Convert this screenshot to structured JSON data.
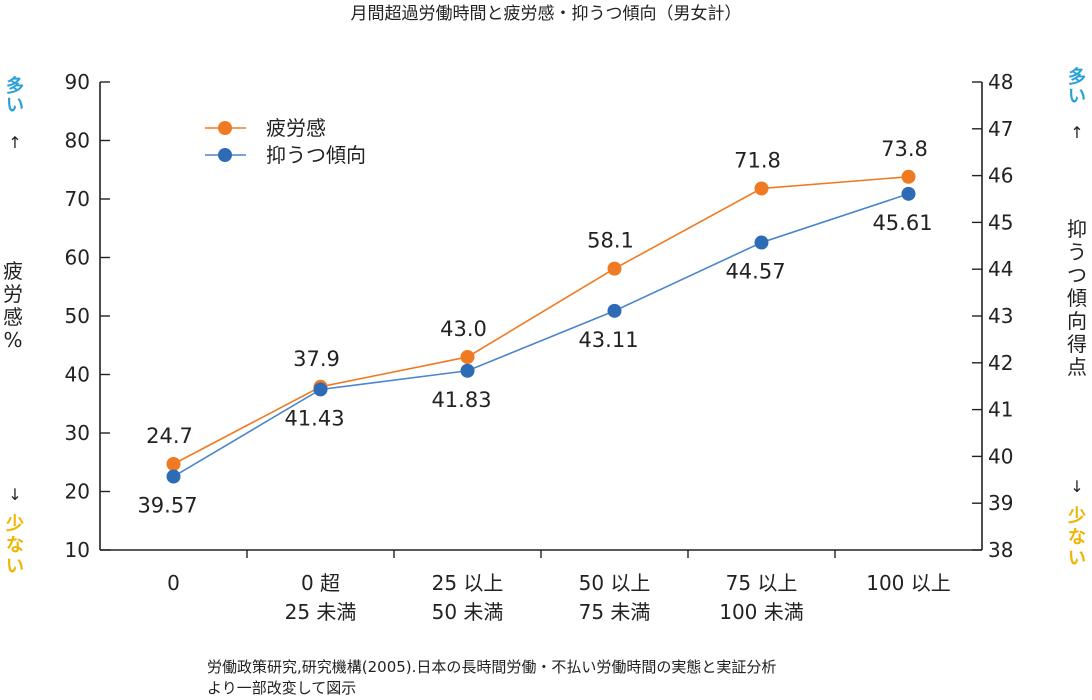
{
  "chart_data": {
    "type": "line",
    "title": "月間超過労働時間と疲労感・抑うつ傾向（男女計）",
    "categories": [
      [
        "0"
      ],
      [
        "0 超",
        "25 未満"
      ],
      [
        "25 以上",
        "50 未満"
      ],
      [
        "50 以上",
        "75 未満"
      ],
      [
        "75 以上",
        "100 未満"
      ],
      [
        "100 以上"
      ]
    ],
    "left_axis": {
      "label": "疲労感%",
      "ylim": [
        10,
        90
      ],
      "ticks": [
        10,
        20,
        30,
        40,
        50,
        60,
        70,
        80,
        90
      ]
    },
    "right_axis": {
      "label": "抑うつ傾向得点",
      "ylim": [
        38,
        48
      ],
      "ticks": [
        38,
        39,
        40,
        41,
        42,
        43,
        44,
        45,
        46,
        47,
        48
      ]
    },
    "series": [
      {
        "name": "疲労感",
        "axis": "left",
        "color": "#f07a22",
        "line_color": "#f07a22",
        "values": [
          24.7,
          37.9,
          43.0,
          58.1,
          71.8,
          73.8
        ],
        "labels": [
          "24.7",
          "37.9",
          "43.0",
          "58.1",
          "71.8",
          "73.8"
        ]
      },
      {
        "name": "抑うつ傾向",
        "axis": "right",
        "color": "#2e6bb5",
        "line_color": "#4a86cc",
        "values": [
          39.57,
          41.43,
          41.83,
          43.11,
          44.57,
          45.61
        ],
        "labels": [
          "39.57",
          "41.43",
          "41.83",
          "43.11",
          "44.57",
          "45.61"
        ]
      }
    ],
    "left_hints": {
      "top": "多い",
      "top_arrow": "↑",
      "bottom_arrow": "↓",
      "bottom": "少ない"
    },
    "right_hints": {
      "top": "多い",
      "top_arrow": "↑",
      "bottom_arrow": "↓",
      "bottom": "少ない"
    },
    "hint_colors": {
      "more": "#2aa0d8",
      "less": "#efb400"
    },
    "legend_position": "top-left",
    "grid": false,
    "source": [
      "労働政策研究,研究機構(2005).日本の長時間労働・不払い労働時間の実態と実証分析",
      "より一部改変して図示"
    ]
  }
}
